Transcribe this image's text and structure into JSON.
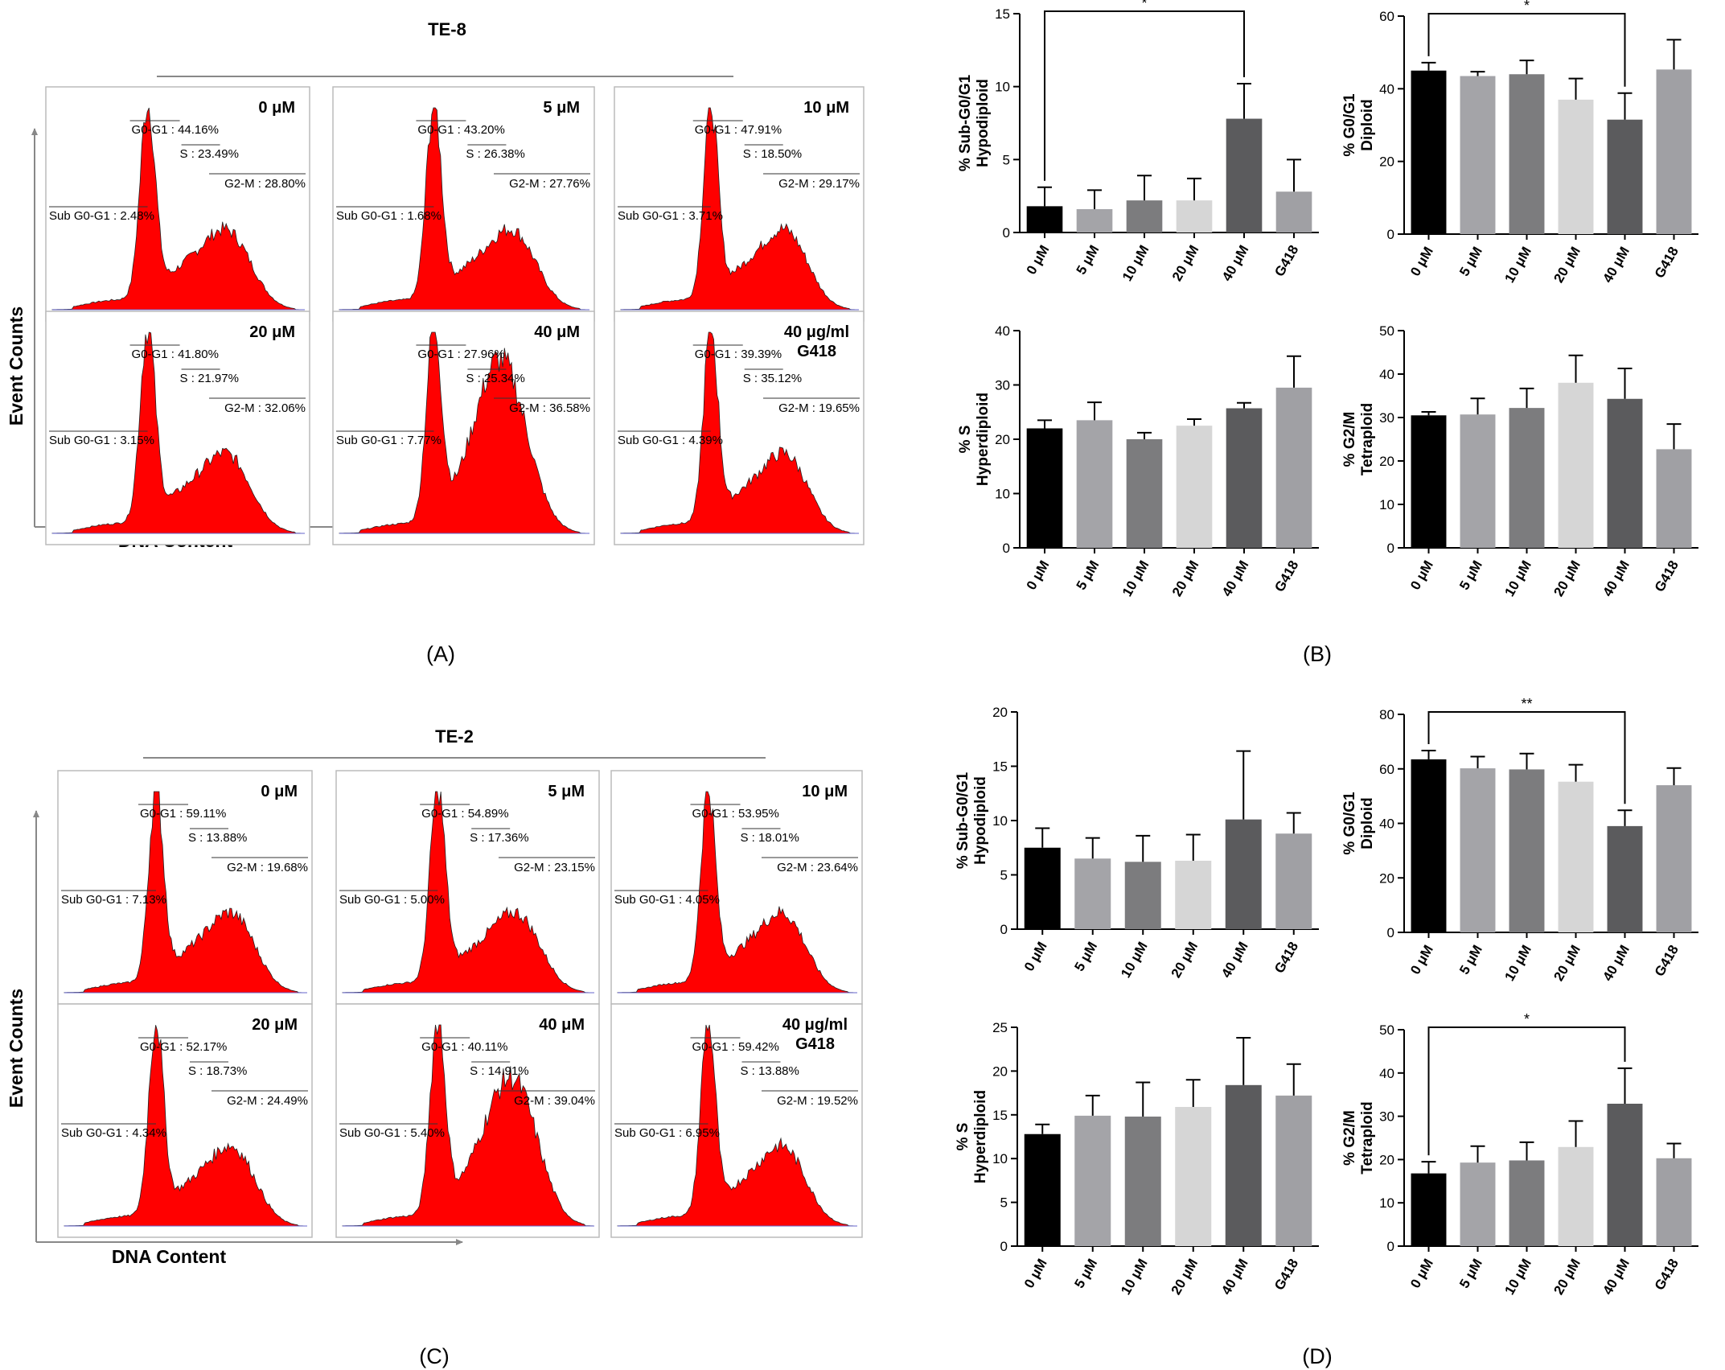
{
  "panels": {
    "A": {
      "label": "(A)",
      "cell_line": "TE-8",
      "y_axis_label": "Event Counts",
      "x_axis_label": "DNA Content",
      "histograms": [
        {
          "treatment": "0 μM",
          "sub_g0_g1": "Sub G0-G1 : 2.48%",
          "g0_g1": "G0-G1 : 44.16%",
          "s": "S : 23.49%",
          "g2_m": "G2-M : 28.80%"
        },
        {
          "treatment": "5 μM",
          "sub_g0_g1": "Sub G0-G1 : 1.68%",
          "g0_g1": "G0-G1 : 43.20%",
          "s": "S : 26.38%",
          "g2_m": "G2-M : 27.76%"
        },
        {
          "treatment": "10 μM",
          "sub_g0_g1": "Sub G0-G1 : 3.71%",
          "g0_g1": "G0-G1 : 47.91%",
          "s": "S : 18.50%",
          "g2_m": "G2-M : 29.17%"
        },
        {
          "treatment": "20 μM",
          "sub_g0_g1": "Sub G0-G1 : 3.15%",
          "g0_g1": "G0-G1 : 41.80%",
          "s": "S : 21.97%",
          "g2_m": "G2-M : 32.06%"
        },
        {
          "treatment": "40 μM",
          "sub_g0_g1": "Sub G0-G1 : 7.77%",
          "g0_g1": "G0-G1 : 27.96%",
          "s": "S : 25.34%",
          "g2_m": "G2-M : 36.58%"
        },
        {
          "treatment": "40 μg/ml",
          "treatment_line2": "G418",
          "sub_g0_g1": "Sub G0-G1 : 4.39%",
          "g0_g1": "G0-G1 : 39.39%",
          "s": "S : 35.12%",
          "g2_m": "G2-M : 19.65%"
        }
      ]
    },
    "B": {
      "label": "(B)"
    },
    "C": {
      "label": "(C)",
      "cell_line": "TE-2",
      "y_axis_label": "Event Counts",
      "x_axis_label": "DNA Content",
      "histograms": [
        {
          "treatment": "0 μM",
          "sub_g0_g1": "Sub G0-G1 : 7.13%",
          "g0_g1": "G0-G1 : 59.11%",
          "s": "S : 13.88%",
          "g2_m": "G2-M : 19.68%"
        },
        {
          "treatment": "5 μM",
          "sub_g0_g1": "Sub G0-G1 : 5.00%",
          "g0_g1": "G0-G1 : 54.89%",
          "s": "S : 17.36%",
          "g2_m": "G2-M : 23.15%"
        },
        {
          "treatment": "10 μM",
          "sub_g0_g1": "Sub G0-G1 : 4.05%",
          "g0_g1": "G0-G1 : 53.95%",
          "s": "S : 18.01%",
          "g2_m": "G2-M : 23.64%"
        },
        {
          "treatment": "20 μM",
          "sub_g0_g1": "Sub G0-G1 : 4.34%",
          "g0_g1": "G0-G1 : 52.17%",
          "s": "S : 18.73%",
          "g2_m": "G2-M : 24.49%"
        },
        {
          "treatment": "40 μM",
          "sub_g0_g1": "Sub G0-G1 : 5.40%",
          "g0_g1": "G0-G1 : 40.11%",
          "s": "S : 14.91%",
          "g2_m": "G2-M : 39.04%"
        },
        {
          "treatment": "40 μg/ml",
          "treatment_line2": "G418",
          "sub_g0_g1": "Sub G0-G1 : 6.95%",
          "g0_g1": "G0-G1 : 59.42%",
          "s": "S : 13.88%",
          "g2_m": "G2-M : 19.52%"
        }
      ]
    },
    "D": {
      "label": "(D)"
    }
  },
  "colors": {
    "histogram_fill": "#ff0000",
    "bars": [
      "#000000",
      "#a4a4a8",
      "#7c7c7e",
      "#d6d6d6",
      "#5b5b5d",
      "#a0a0a4"
    ]
  },
  "chart_data": [
    {
      "id": "B1",
      "panel": "B",
      "type": "bar",
      "categories": [
        "0 μM",
        "5 μM",
        "10 μM",
        "20 μM",
        "40 μM",
        "G418"
      ],
      "values": [
        1.8,
        1.6,
        2.2,
        2.2,
        7.8,
        2.8
      ],
      "errors": [
        1.3,
        1.3,
        1.7,
        1.5,
        2.4,
        2.2
      ],
      "ylabel_line1": "% Sub-G0/G1",
      "ylabel_line2": "Hypodiploid",
      "ylim": [
        0,
        15
      ],
      "yticks": [
        0,
        5,
        10,
        15
      ],
      "significance": [
        {
          "from": 0,
          "to": 4,
          "label": "*"
        }
      ]
    },
    {
      "id": "B2",
      "panel": "B",
      "type": "bar",
      "categories": [
        "0 μM",
        "5 μM",
        "10 μM",
        "20 μM",
        "40 μM",
        "G418"
      ],
      "values": [
        45,
        43.5,
        44,
        37,
        31.5,
        45.3
      ],
      "errors": [
        2.2,
        1.2,
        3.8,
        5.8,
        7.3,
        8.2
      ],
      "ylabel_line1": "% G0/G1",
      "ylabel_line2": "Diploid",
      "ylim": [
        0,
        60
      ],
      "yticks": [
        0,
        20,
        40,
        60
      ],
      "significance": [
        {
          "from": 0,
          "to": 4,
          "label": "*"
        }
      ]
    },
    {
      "id": "B3",
      "panel": "B",
      "type": "bar",
      "categories": [
        "0 μM",
        "5 μM",
        "10 μM",
        "20 μM",
        "40 μM",
        "G418"
      ],
      "values": [
        22,
        23.5,
        20,
        22.5,
        25.7,
        29.5
      ],
      "errors": [
        1.5,
        3.3,
        1.2,
        1.2,
        1.0,
        5.8
      ],
      "ylabel_line1": "% S",
      "ylabel_line2": "Hyperdiploid",
      "ylim": [
        0,
        40
      ],
      "yticks": [
        0,
        10,
        20,
        30,
        40
      ],
      "significance": []
    },
    {
      "id": "B4",
      "panel": "B",
      "type": "bar",
      "categories": [
        "0 μM",
        "5 μM",
        "10 μM",
        "20 μM",
        "40 μM",
        "G418"
      ],
      "values": [
        30.5,
        30.7,
        32.2,
        38,
        34.3,
        22.7
      ],
      "errors": [
        0.8,
        3.7,
        4.5,
        6.3,
        7.0,
        5.8
      ],
      "ylabel_line1": "% G2/M",
      "ylabel_line2": "Tetraploid",
      "ylim": [
        0,
        50
      ],
      "yticks": [
        0,
        10,
        20,
        30,
        40,
        50
      ],
      "significance": []
    },
    {
      "id": "D1",
      "panel": "D",
      "type": "bar",
      "categories": [
        "0 μM",
        "5 μM",
        "10 μM",
        "20 μM",
        "40 μM",
        "G418"
      ],
      "values": [
        7.5,
        6.5,
        6.2,
        6.3,
        10.1,
        8.8
      ],
      "errors": [
        1.8,
        1.9,
        2.4,
        2.4,
        6.3,
        1.9
      ],
      "ylabel_line1": "% Sub-G0/G1",
      "ylabel_line2": "Hypodiploid",
      "ylim": [
        0,
        20
      ],
      "yticks": [
        0,
        5,
        10,
        15,
        20
      ],
      "significance": []
    },
    {
      "id": "D2",
      "panel": "D",
      "type": "bar",
      "categories": [
        "0 μM",
        "5 μM",
        "10 μM",
        "20 μM",
        "40 μM",
        "G418"
      ],
      "values": [
        63.5,
        60.2,
        59.8,
        55.3,
        39,
        54
      ],
      "errors": [
        3.2,
        4.3,
        5.8,
        6.2,
        5.8,
        6.3
      ],
      "ylabel_line1": "% G0/G1",
      "ylabel_line2": "Diploid",
      "ylim": [
        0,
        80
      ],
      "yticks": [
        0,
        20,
        40,
        60,
        80
      ],
      "significance": [
        {
          "from": 0,
          "to": 4,
          "label": "**"
        }
      ]
    },
    {
      "id": "D3",
      "panel": "D",
      "type": "bar",
      "categories": [
        "0 μM",
        "5 μM",
        "10 μM",
        "20 μM",
        "40 μM",
        "G418"
      ],
      "values": [
        12.8,
        14.9,
        14.8,
        15.9,
        18.4,
        17.2
      ],
      "errors": [
        1.1,
        2.3,
        3.9,
        3.1,
        5.4,
        3.6
      ],
      "ylabel_line1": "% S",
      "ylabel_line2": "Hyperdiploid",
      "ylim": [
        0,
        25
      ],
      "yticks": [
        0,
        5,
        10,
        15,
        20,
        25
      ],
      "significance": []
    },
    {
      "id": "D4",
      "panel": "D",
      "type": "bar",
      "categories": [
        "0 μM",
        "5 μM",
        "10 μM",
        "20 μM",
        "40 μM",
        "G418"
      ],
      "values": [
        16.8,
        19.3,
        19.8,
        22.9,
        32.9,
        20.3
      ],
      "errors": [
        2.7,
        3.8,
        4.2,
        6.0,
        8.2,
        3.4
      ],
      "ylabel_line1": "% G2/M",
      "ylabel_line2": "Tetraploid",
      "ylim": [
        0,
        50
      ],
      "yticks": [
        0,
        10,
        20,
        30,
        40,
        50
      ],
      "significance": [
        {
          "from": 0,
          "to": 4,
          "label": "*"
        }
      ]
    }
  ]
}
